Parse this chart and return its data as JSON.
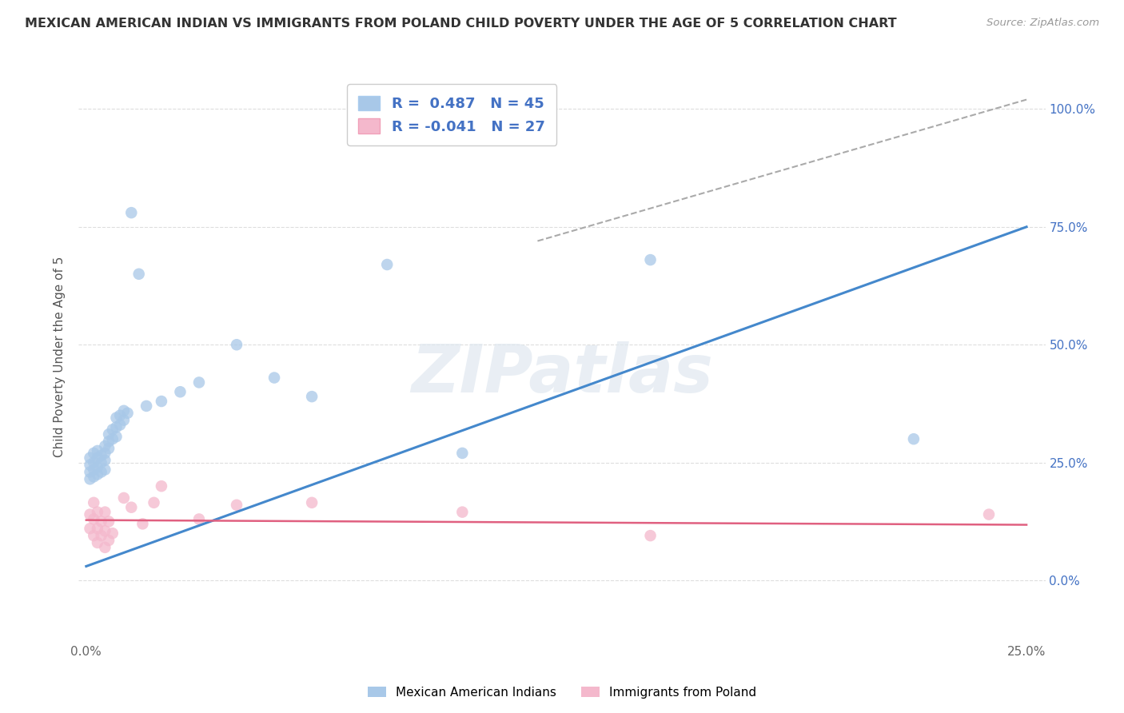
{
  "title": "MEXICAN AMERICAN INDIAN VS IMMIGRANTS FROM POLAND CHILD POVERTY UNDER THE AGE OF 5 CORRELATION CHART",
  "source": "Source: ZipAtlas.com",
  "ylabel": "Child Poverty Under the Age of 5",
  "x_ticks": [
    0.0,
    0.05,
    0.1,
    0.15,
    0.2,
    0.25
  ],
  "x_tick_labels": [
    "0.0%",
    "",
    "",
    "",
    "",
    "25.0%"
  ],
  "y_ticks": [
    0.0,
    0.25,
    0.5,
    0.75,
    1.0
  ],
  "y_tick_labels_right": [
    "0.0%",
    "25.0%",
    "50.0%",
    "75.0%",
    "100.0%"
  ],
  "xlim": [
    -0.002,
    0.255
  ],
  "ylim": [
    -0.13,
    1.08
  ],
  "blue_color": "#a8c8e8",
  "pink_color": "#f4b8cc",
  "blue_line_color": "#4488cc",
  "pink_line_color": "#e06080",
  "r_blue": 0.487,
  "n_blue": 45,
  "r_pink": -0.041,
  "n_pink": 27,
  "legend_label_blue": "Mexican American Indians",
  "legend_label_pink": "Immigrants from Poland",
  "watermark": "ZIPatlas",
  "blue_x": [
    0.001,
    0.001,
    0.001,
    0.001,
    0.002,
    0.002,
    0.002,
    0.002,
    0.003,
    0.003,
    0.003,
    0.003,
    0.004,
    0.004,
    0.004,
    0.005,
    0.005,
    0.005,
    0.005,
    0.006,
    0.006,
    0.006,
    0.007,
    0.007,
    0.008,
    0.008,
    0.008,
    0.009,
    0.009,
    0.01,
    0.01,
    0.011,
    0.012,
    0.014,
    0.016,
    0.02,
    0.025,
    0.03,
    0.04,
    0.05,
    0.06,
    0.08,
    0.1,
    0.15,
    0.22
  ],
  "blue_y": [
    0.215,
    0.23,
    0.245,
    0.26,
    0.22,
    0.235,
    0.25,
    0.27,
    0.225,
    0.24,
    0.26,
    0.275,
    0.23,
    0.25,
    0.265,
    0.235,
    0.255,
    0.27,
    0.285,
    0.28,
    0.295,
    0.31,
    0.3,
    0.32,
    0.305,
    0.325,
    0.345,
    0.33,
    0.35,
    0.34,
    0.36,
    0.355,
    0.78,
    0.65,
    0.37,
    0.38,
    0.4,
    0.42,
    0.5,
    0.43,
    0.39,
    0.67,
    0.27,
    0.68,
    0.3
  ],
  "pink_x": [
    0.001,
    0.001,
    0.002,
    0.002,
    0.002,
    0.003,
    0.003,
    0.003,
    0.004,
    0.004,
    0.005,
    0.005,
    0.005,
    0.006,
    0.006,
    0.007,
    0.01,
    0.012,
    0.015,
    0.018,
    0.02,
    0.03,
    0.04,
    0.06,
    0.1,
    0.15,
    0.24
  ],
  "pink_y": [
    0.14,
    0.11,
    0.095,
    0.13,
    0.165,
    0.08,
    0.11,
    0.145,
    0.095,
    0.125,
    0.07,
    0.105,
    0.145,
    0.085,
    0.125,
    0.1,
    0.175,
    0.155,
    0.12,
    0.165,
    0.2,
    0.13,
    0.16,
    0.165,
    0.145,
    0.095,
    0.14
  ],
  "background_color": "#ffffff",
  "grid_color": "#dddddd",
  "blue_line_x0": 0.0,
  "blue_line_y0": 0.03,
  "blue_line_x1": 0.25,
  "blue_line_y1": 0.75,
  "pink_line_x0": 0.0,
  "pink_line_y0": 0.128,
  "pink_line_x1": 0.25,
  "pink_line_y1": 0.118,
  "dash_line_x0": 0.12,
  "dash_line_y0": 0.72,
  "dash_line_x1": 0.25,
  "dash_line_y1": 1.02
}
